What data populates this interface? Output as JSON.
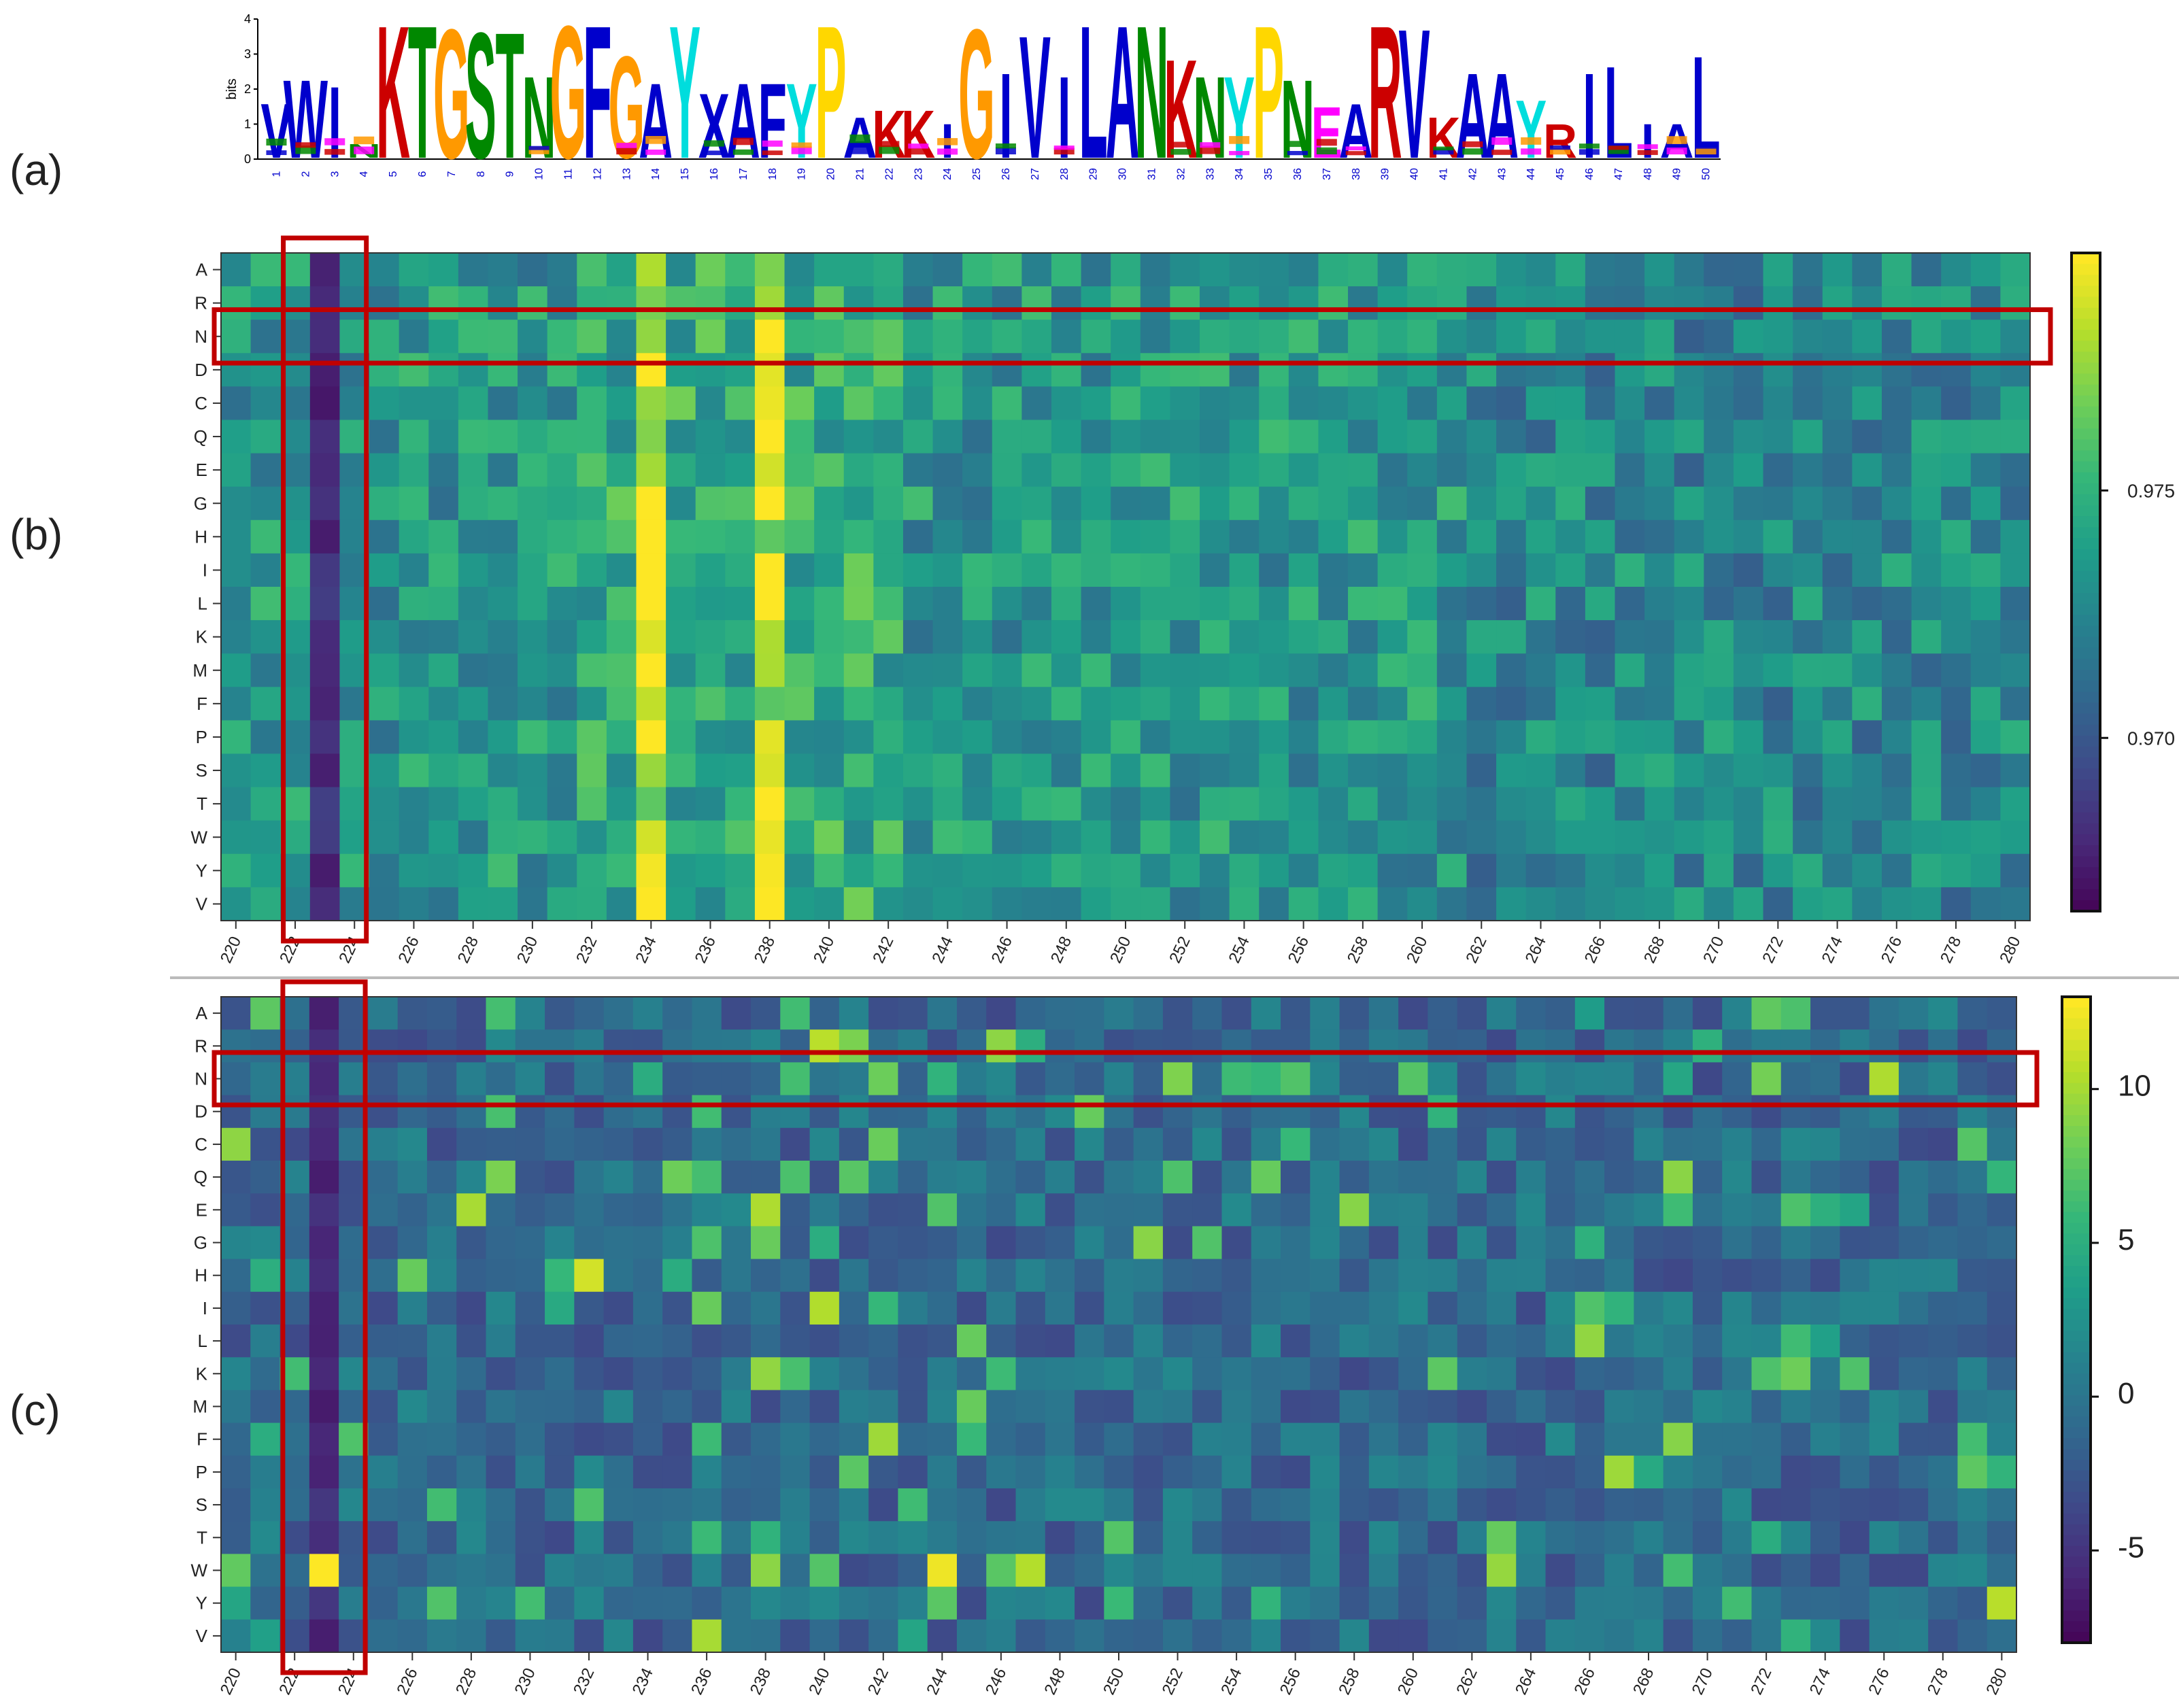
{
  "figure": {
    "panel_labels": [
      "(a)",
      "(b)",
      "(c)"
    ],
    "highlight_color": "#c00000"
  },
  "chart_data": [
    {
      "panel": "(a)",
      "type": "sequence-logo",
      "ylabel": "bits",
      "ylim": [
        0,
        4
      ],
      "yticks": [
        "0",
        "1",
        "2",
        "3",
        "4"
      ],
      "positions": [
        "1",
        "2",
        "3",
        "4",
        "5",
        "6",
        "7",
        "8",
        "9",
        "10",
        "11",
        "12",
        "13",
        "14",
        "15",
        "16",
        "17",
        "18",
        "19",
        "20",
        "21",
        "22",
        "23",
        "24",
        "25",
        "26",
        "27",
        "28",
        "29",
        "30",
        "31",
        "32",
        "33",
        "34",
        "35",
        "36",
        "37",
        "38",
        "39",
        "40",
        "41",
        "42",
        "43",
        "44",
        "45",
        "46",
        "47",
        "48",
        "49",
        "50"
      ],
      "top_residues": [
        "V",
        "W",
        "I",
        "N",
        "K",
        "T",
        "G",
        "S",
        "T",
        "N",
        "G",
        "F",
        "G",
        "A",
        "Y",
        "X",
        "A",
        "F",
        "Y",
        "P",
        "A",
        "K",
        "K",
        "I",
        "G",
        "I",
        "V",
        "I",
        "L",
        "A",
        "N",
        "K",
        "N",
        "Y",
        "P",
        "N",
        "E",
        "A",
        "R",
        "V",
        "K",
        "A",
        "A",
        "Y",
        "R",
        "I",
        "L",
        "I",
        "A",
        "L"
      ],
      "heights": [
        1.6,
        2.3,
        2.1,
        0.4,
        3.9,
        3.9,
        3.8,
        3.7,
        3.7,
        2.4,
        3.9,
        3.9,
        3.0,
        2.2,
        3.9,
        1.9,
        2.2,
        2.2,
        2.2,
        3.9,
        1.2,
        1.4,
        1.4,
        1.0,
        3.8,
        2.5,
        3.6,
        2.4,
        3.9,
        3.9,
        3.9,
        2.9,
        2.4,
        2.4,
        3.9,
        2.3,
        1.5,
        1.6,
        3.9,
        3.8,
        1.2,
        2.5,
        2.5,
        1.7,
        1.0,
        2.5,
        2.7,
        1.0,
        1.0,
        3.0
      ],
      "residue_colors": {
        "hydrophobic": "#0000cc",
        "polar": "#008800",
        "glycine": "#ff9900",
        "basic": "#cc0000",
        "acidic": "#ff00ff",
        "aromatic_Y_H": "#00dddd",
        "proline": "#ffd700",
        "histidine": "#ffaaaa"
      }
    },
    {
      "panel": "(b)",
      "type": "heatmap",
      "rows": [
        "A",
        "R",
        "N",
        "D",
        "C",
        "Q",
        "E",
        "G",
        "H",
        "I",
        "L",
        "K",
        "M",
        "F",
        "P",
        "S",
        "T",
        "W",
        "Y",
        "V"
      ],
      "x_start": 220,
      "x_end": 280,
      "xtick_labels": [
        "220",
        "222",
        "224",
        "226",
        "228",
        "230",
        "232",
        "234",
        "236",
        "238",
        "240",
        "242",
        "244",
        "246",
        "248",
        "250",
        "252",
        "254",
        "256",
        "258",
        "260",
        "262",
        "264",
        "266",
        "268",
        "270",
        "272",
        "274",
        "276",
        "278",
        "280"
      ],
      "colorbar": {
        "vmin": 0.9665,
        "vmax": 0.9798,
        "ticks": [
          "0.970",
          "0.975"
        ],
        "tick_values": [
          0.97,
          0.975
        ],
        "colormap": "viridis"
      },
      "highlight": {
        "column": 223,
        "row": "N"
      }
    },
    {
      "panel": "(c)",
      "type": "heatmap",
      "rows": [
        "A",
        "R",
        "N",
        "D",
        "C",
        "Q",
        "E",
        "G",
        "H",
        "I",
        "L",
        "K",
        "M",
        "F",
        "P",
        "S",
        "T",
        "W",
        "Y",
        "V"
      ],
      "x_start": 220,
      "x_end": 280,
      "xtick_labels": [
        "220",
        "222",
        "224",
        "226",
        "228",
        "230",
        "232",
        "234",
        "236",
        "238",
        "240",
        "242",
        "244",
        "246",
        "248",
        "250",
        "252",
        "254",
        "256",
        "258",
        "260",
        "262",
        "264",
        "266",
        "268",
        "270",
        "272",
        "274",
        "276",
        "278",
        "280"
      ],
      "colorbar": {
        "vmin": -8,
        "vmax": 13,
        "ticks": [
          "-5",
          "0",
          "5",
          "10"
        ],
        "tick_values": [
          -5,
          0,
          5,
          10
        ],
        "colormap": "viridis"
      },
      "highlight": {
        "column": 223,
        "row": "N"
      }
    }
  ]
}
